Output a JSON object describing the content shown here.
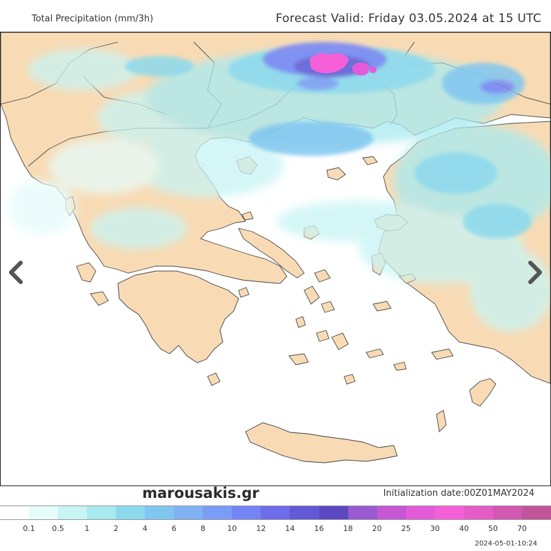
{
  "header": {
    "title": "Total Precipitation (mm/3h)",
    "valid": "Forecast Valid:  Friday 03.05.2024 at 15 UTC"
  },
  "map": {
    "land_color": "#f8dbb5",
    "sea_color": "#ffffff",
    "border_color": "#444444"
  },
  "navigation": {
    "prev_icon": "chevron-left-icon",
    "next_icon": "chevron-right-icon"
  },
  "footer": {
    "brand": "marousakis.gr",
    "init": "Initialization  date:00Z01MAY2024",
    "timestamp": "2024-05-01-10:24"
  },
  "legend": {
    "colors": [
      "#ffffff",
      "#e6fcfb",
      "#c8f4f4",
      "#a8eaf0",
      "#8cd9ee",
      "#80c6f0",
      "#7fb1f3",
      "#7c9df6",
      "#7584f5",
      "#6e6de9",
      "#6259d6",
      "#5e48c2",
      "#9a5bd0",
      "#c657d4",
      "#e45bd9",
      "#f560d9",
      "#e65cc6",
      "#d257b0",
      "#c05599"
    ],
    "ticks": [
      "0.1",
      "0.5",
      "1",
      "2",
      "4",
      "6",
      "8",
      "10",
      "12",
      "14",
      "16",
      "18",
      "20",
      "25",
      "30",
      "40",
      "50",
      "70"
    ]
  }
}
